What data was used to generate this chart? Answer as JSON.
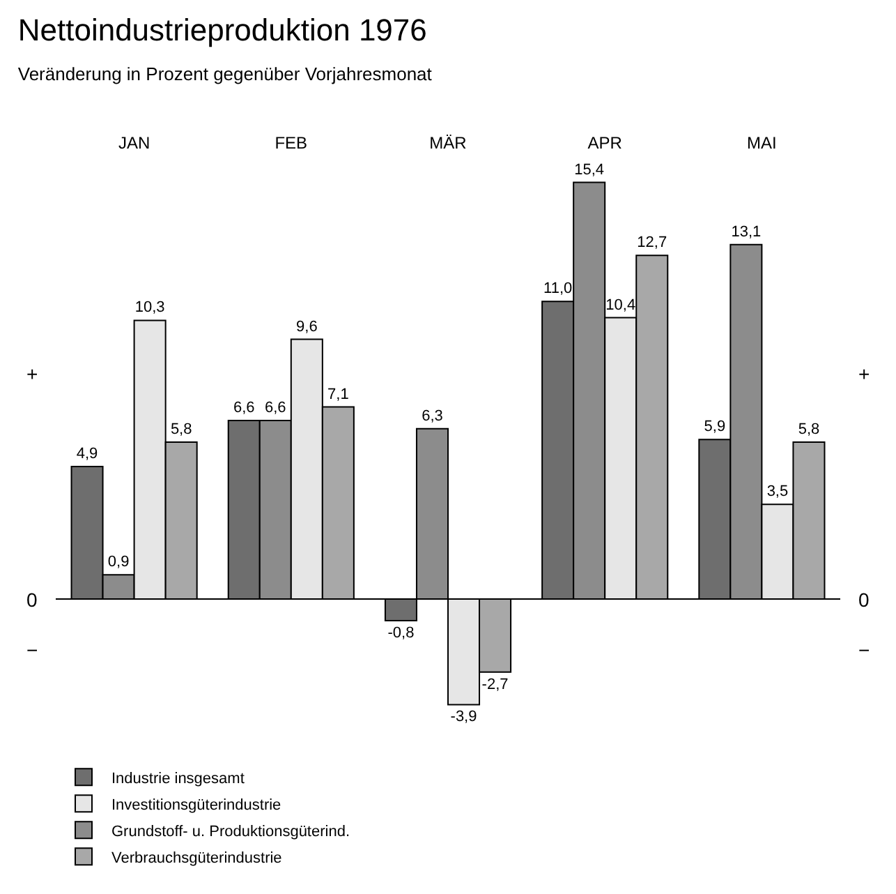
{
  "chart_data": {
    "type": "bar",
    "title": "Nettoindustrieproduktion 1976",
    "subtitle": "Veränderung in Prozent gegenüber Vorjahresmonat",
    "categories": [
      "JAN",
      "FEB",
      "MÄR",
      "APR",
      "MAI"
    ],
    "series": [
      {
        "name": "Industrie insgesamt",
        "color": "#6e6e6e",
        "values": [
          4.9,
          6.6,
          -0.8,
          11.0,
          5.9
        ],
        "value_labels": [
          "4,9",
          "6,6",
          "-0,8",
          "11,0",
          "5,9"
        ]
      },
      {
        "name": "Grundstoff- u. Produktionsgüterind.",
        "color": "#8c8c8c",
        "values": [
          0.9,
          6.6,
          6.3,
          15.4,
          13.1
        ],
        "value_labels": [
          "0,9",
          "6,6",
          "6,3",
          "15,4",
          "13,1"
        ]
      },
      {
        "name": "Investitionsgüterindustrie",
        "color": "#e6e6e6",
        "values": [
          10.3,
          9.6,
          -3.9,
          10.4,
          3.5
        ],
        "value_labels": [
          "10,3",
          "9,6",
          "-3,9",
          "10,4",
          "3,5"
        ]
      },
      {
        "name": "Verbrauchsgüterindustrie",
        "color": "#a8a8a8",
        "values": [
          5.8,
          7.1,
          -2.7,
          12.7,
          5.8
        ],
        "value_labels": [
          "5,8",
          "7,1",
          "-2,7",
          "12,7",
          "5,8"
        ]
      }
    ],
    "legend": "bottom",
    "annotations": [
      "+",
      "0",
      "−"
    ]
  }
}
